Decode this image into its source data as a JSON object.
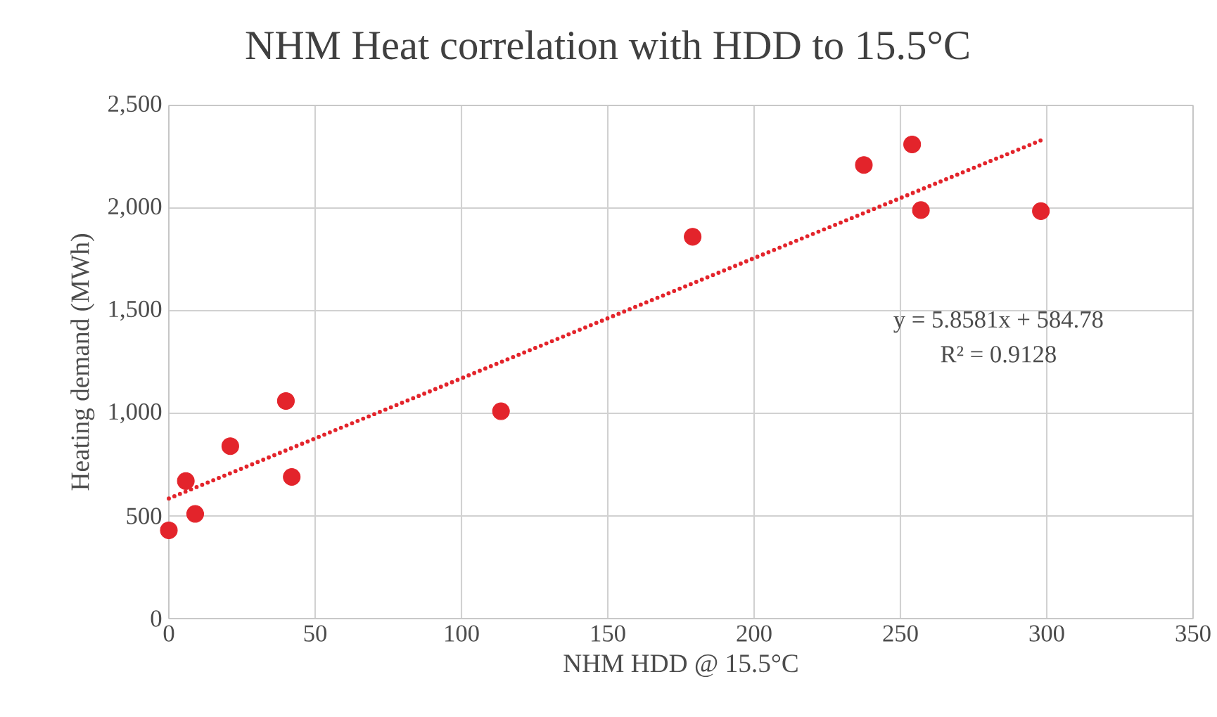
{
  "chart_data": {
    "type": "scatter",
    "title": "NHM Heat correlation with HDD to 15.5°C",
    "xlabel": "NHM HDD @ 15.5°C",
    "ylabel": "Heating demand (MWh)",
    "xlim": [
      0,
      350
    ],
    "xticks": [
      0,
      50,
      100,
      150,
      200,
      250,
      300,
      350
    ],
    "ylim": [
      0,
      2500
    ],
    "yticks": [
      0,
      {
        "value": 500,
        "label": "500"
      },
      {
        "value": 1000,
        "label": "1,000"
      },
      {
        "value": 1500,
        "label": "1,500"
      },
      {
        "value": 2000,
        "label": "2,000"
      },
      {
        "value": 2500,
        "label": "2,500"
      }
    ],
    "grid": true,
    "series": [
      {
        "color": "#e3242b",
        "marker": "circle",
        "x": [
          0,
          5.8,
          9,
          21,
          40,
          42,
          113.5,
          179,
          237.5,
          254,
          257,
          298
        ],
        "values": [
          430,
          670,
          510,
          840,
          1060,
          690,
          1010,
          1860,
          2210,
          2310,
          1990,
          1985
        ]
      },
      {
        "type": "line",
        "color": "#e3242b",
        "line_style": "dotted",
        "marker": "none",
        "x": [
          0,
          298
        ],
        "values": [
          585,
          2330
        ]
      }
    ],
    "annotations": [
      "y = 5.8581x + 584.78",
      "R² = 0.9128"
    ]
  }
}
